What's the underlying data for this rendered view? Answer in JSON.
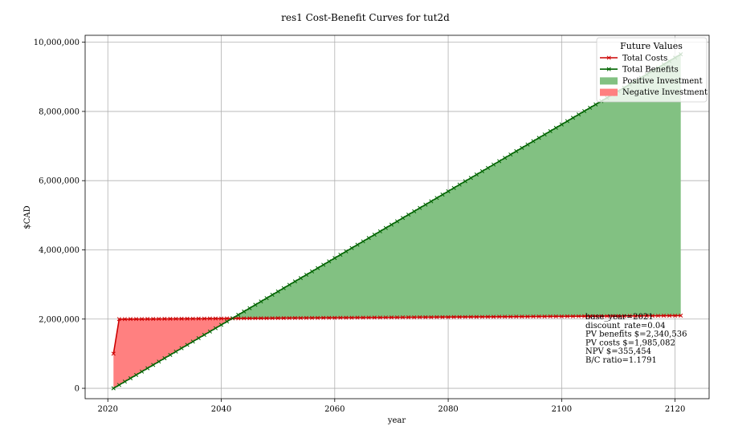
{
  "chart_data": {
    "type": "area",
    "title": "res1 Cost-Benefit Curves for tut2d",
    "xlabel": "year",
    "ylabel": "$CAD",
    "xlim": [
      2016,
      2126
    ],
    "ylim": [
      -300000,
      10200000
    ],
    "grid": true,
    "xticks": [
      2020,
      2040,
      2060,
      2080,
      2100,
      2120
    ],
    "xtick_labels": [
      "2020",
      "2040",
      "2060",
      "2080",
      "2100",
      "2120"
    ],
    "yticks": [
      0,
      2000000,
      4000000,
      6000000,
      8000000,
      10000000
    ],
    "ytick_labels": [
      "0",
      "2,000,000",
      "4,000,000",
      "6,000,000",
      "8,000,000",
      "10,000,000"
    ],
    "legend": {
      "title": "Future Values",
      "placement": "top-right",
      "entries": [
        {
          "label": "Total Costs",
          "kind": "line",
          "color": "#cc0000"
        },
        {
          "label": "Total Benefits",
          "kind": "line",
          "color": "#006400"
        },
        {
          "label": "Positive Investment",
          "kind": "patch",
          "color": "#82c182"
        },
        {
          "label": "Negative Investment",
          "kind": "patch",
          "color": "#ff8080"
        }
      ]
    },
    "series": [
      {
        "name": "Total Costs",
        "color": "#cc0000",
        "marker": "x",
        "x": [
          2021,
          2022,
          2023,
          2121
        ],
        "y": [
          1000000,
          2000000,
          2000000,
          2100000
        ]
      },
      {
        "name": "Total Benefits",
        "color": "#006400",
        "marker": "x",
        "x": [
          2021,
          2121
        ],
        "y": [
          0,
          9650000
        ]
      }
    ],
    "fills": {
      "positive": {
        "name": "Positive Investment",
        "color": "#82c182"
      },
      "negative": {
        "name": "Negative Investment",
        "color": "#ff8080"
      }
    },
    "annotation": [
      "base_year=2021",
      "discount_rate=0.04",
      "PV benefits $=2,340,536",
      "PV costs $=1,985,082",
      "NPV $=355,454",
      "B/C ratio=1.1791"
    ]
  }
}
